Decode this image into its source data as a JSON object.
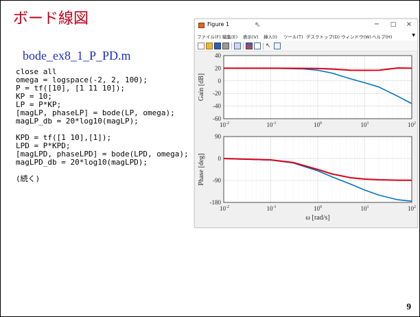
{
  "slide": {
    "title": "ボード線図",
    "filename": "bode_ex8_1_P_PD.m",
    "code_lines": [
      "close all",
      "omega = logspace(-2, 2, 100);",
      "P = tf([10], [1 11 10]);",
      "KP = 10;",
      "LP = P*KP;",
      "[magLP, phaseLP] = bode(LP, omega);",
      "magLP_db = 20*log10(magLP);",
      "",
      "KPD = tf([1 10],[1]);",
      "LPD = P*KPD;",
      "[magLPD, phaseLPD] = bode(LPD, omega);",
      "magLPD_db = 20*log10(magLPD);",
      "",
      "(続く)"
    ],
    "page_number": "9"
  },
  "figure_window": {
    "title": "Figure 1",
    "icon": "matlab-figure-icon",
    "controls": {
      "minimize": "−",
      "maximize": "□",
      "close": "×"
    },
    "menu": [
      "ファイル(F)",
      "編集(E)",
      "表示(V)",
      "挿入(I)",
      "ツール(T)",
      "デスクトップ(D)",
      "ウィンドウ(W)",
      "ヘルプ(H)"
    ],
    "toolbar_icons": [
      "new-file-icon",
      "open-folder-icon",
      "save-icon",
      "print-icon",
      "link-plot-icon",
      "insert-colorbar-icon",
      "insert-legend-icon",
      "edit-plot-icon",
      "property-inspector-icon"
    ]
  },
  "chart_data": [
    {
      "type": "line",
      "xscale": "log",
      "xlim": [
        0.01,
        100
      ],
      "ylim": [
        -60,
        40
      ],
      "x_ticks": [
        "10^-2",
        "10^-1",
        "10^0",
        "10^1",
        "10^2"
      ],
      "y_ticks": [
        "40",
        "20",
        "0",
        "-20",
        "-40",
        "-60"
      ],
      "ylabel": "Gain [dB]",
      "xlabel": "",
      "grid": true,
      "series": [
        {
          "color": "#0072bd",
          "x": [
            0.01,
            0.1,
            0.5,
            1,
            2,
            5,
            10,
            20,
            50,
            100
          ],
          "y": [
            20,
            19.96,
            18.9,
            16.9,
            12.3,
            3.2,
            -3.0,
            -9.8,
            -24.4,
            -36.1
          ]
        },
        {
          "color": "#d9001b",
          "x": [
            0.01,
            0.1,
            0.5,
            1,
            2,
            5,
            10,
            20,
            50,
            100
          ],
          "y": [
            20,
            20,
            19.8,
            19.6,
            18.7,
            16.7,
            16.6,
            16.7,
            20.3,
            20
          ]
        }
      ]
    },
    {
      "type": "line",
      "xscale": "log",
      "xlim": [
        0.01,
        100
      ],
      "ylim": [
        -180,
        90
      ],
      "x_ticks": [
        "10^-2",
        "10^-1",
        "10^0",
        "10^1",
        "10^2"
      ],
      "y_ticks": [
        "90",
        "0",
        "-90",
        "-180"
      ],
      "ylabel": "Phase [deg]",
      "xlabel": "ω [rad/s]",
      "grid": true,
      "series": [
        {
          "color": "#0072bd",
          "x": [
            0.01,
            0.1,
            0.3,
            1,
            2,
            5,
            10,
            20,
            50,
            100
          ],
          "y": [
            -0.6,
            -6.3,
            -18.4,
            -50.7,
            -74.7,
            -105.3,
            -129.3,
            -150.2,
            -169.0,
            -174.8
          ]
        },
        {
          "color": "#d9001b",
          "x": [
            0.01,
            0.1,
            0.3,
            1,
            2,
            5,
            10,
            20,
            50,
            100
          ],
          "y": [
            -0.1,
            -5.7,
            -16.7,
            -45.0,
            -63.4,
            -78.7,
            -84.3,
            -87.1,
            -88.9,
            -89.4
          ]
        }
      ]
    }
  ]
}
